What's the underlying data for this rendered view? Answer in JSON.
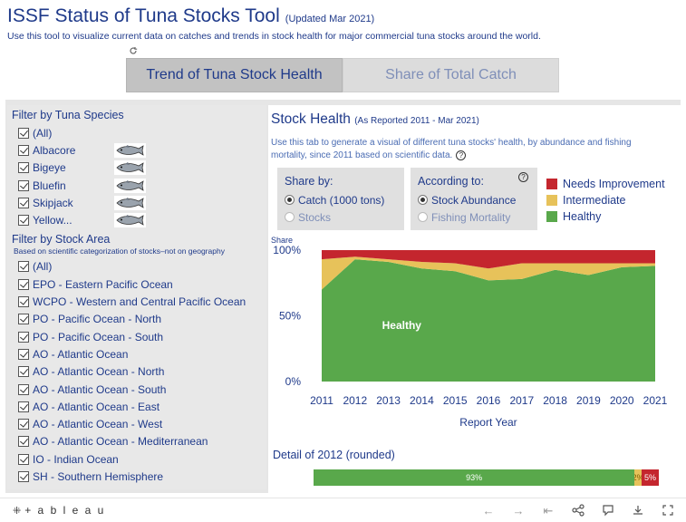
{
  "header": {
    "title": "ISSF Status of Tuna Stocks Tool",
    "updated": "(Updated Mar 2021)",
    "subtitle": "Use this tool to visualize current data on catches and trends in stock health for major commercial tuna stocks around the world."
  },
  "tabs": [
    {
      "label": "Trend of Tuna Stock Health",
      "active": true
    },
    {
      "label": "Share of Total Catch",
      "active": false
    }
  ],
  "filters": {
    "species": {
      "title": "Filter by Tuna Species",
      "items": [
        {
          "label": "(All)",
          "checked": true,
          "icon": ""
        },
        {
          "label": "Albacore",
          "checked": true,
          "icon": "albacore-fish-icon"
        },
        {
          "label": "Bigeye",
          "checked": true,
          "icon": "bigeye-fish-icon"
        },
        {
          "label": "Bluefin",
          "checked": true,
          "icon": "bluefin-fish-icon"
        },
        {
          "label": "Skipjack",
          "checked": true,
          "icon": "skipjack-fish-icon"
        },
        {
          "label": "Yellow...",
          "checked": true,
          "icon": "yellowfin-fish-icon"
        }
      ]
    },
    "area": {
      "title": "Filter by Stock Area",
      "note": "Based on scientific categorization of stocks–not on geography",
      "items": [
        {
          "label": "(All)",
          "checked": true
        },
        {
          "label": "EPO - Eastern Pacific Ocean",
          "checked": true
        },
        {
          "label": "WCPO - Western and Central Pacific Ocean",
          "checked": true
        },
        {
          "label": "PO - Pacific Ocean - North",
          "checked": true
        },
        {
          "label": "PO - Pacific Ocean - South",
          "checked": true
        },
        {
          "label": "AO - Atlantic Ocean",
          "checked": true
        },
        {
          "label": "AO - Atlantic Ocean - North",
          "checked": true
        },
        {
          "label": "AO - Atlantic Ocean - South",
          "checked": true
        },
        {
          "label": "AO - Atlantic Ocean - East",
          "checked": true
        },
        {
          "label": "AO - Atlantic Ocean - West",
          "checked": true
        },
        {
          "label": "AO - Atlantic Ocean - Mediterranean",
          "checked": true
        },
        {
          "label": "IO - Indian Ocean",
          "checked": true
        },
        {
          "label": "SH - Southern Hemisphere",
          "checked": true
        }
      ]
    }
  },
  "stock_health": {
    "title": "Stock Health",
    "title_note": "(As Reported 2011 - Mar 2021)",
    "description": "Use this tab to generate a visual of different tuna stocks' health, by abundance and fishing mortality, since 2011 based on scientific data.",
    "share_by": {
      "title": "Share by:",
      "options": [
        {
          "label": "Catch (1000 tons)",
          "selected": true
        },
        {
          "label": "Stocks",
          "selected": false
        }
      ]
    },
    "according_to": {
      "title": "According to:",
      "options": [
        {
          "label": "Stock Abundance",
          "selected": true
        },
        {
          "label": "Fishing Mortality",
          "selected": false
        }
      ]
    },
    "legend": [
      {
        "label": "Needs Improvement",
        "color": "#c4262e"
      },
      {
        "label": "Intermediate",
        "color": "#e7c25a"
      },
      {
        "label": "Healthy",
        "color": "#59a84b"
      }
    ]
  },
  "chart_data": {
    "type": "area",
    "ylabel": "Share",
    "xlabel": "Report Year",
    "ylim": [
      0,
      100
    ],
    "yticks": [
      "0%",
      "50%",
      "100%"
    ],
    "x": [
      2011,
      2012,
      2013,
      2014,
      2015,
      2016,
      2017,
      2018,
      2019,
      2020,
      2021
    ],
    "series": [
      {
        "name": "Healthy",
        "color": "#59a84b",
        "values": [
          70,
          93,
          91,
          86,
          84,
          77,
          78,
          85,
          81,
          87,
          88
        ]
      },
      {
        "name": "Intermediate",
        "color": "#e7c25a",
        "values": [
          23,
          2,
          2,
          5,
          6,
          9,
          12,
          5,
          9,
          3,
          2
        ]
      },
      {
        "name": "Needs Improvement",
        "color": "#c4262e",
        "values": [
          7,
          5,
          7,
          9,
          10,
          14,
          10,
          10,
          10,
          10,
          10
        ]
      }
    ],
    "annotation": "Healthy",
    "grid": false
  },
  "detail": {
    "title": "Detail of 2012 (rounded)",
    "segments": [
      {
        "label": "93%",
        "value": 93,
        "color": "#59a84b"
      },
      {
        "label": "2%",
        "value": 2,
        "color": "#e7c25a"
      },
      {
        "label": "5%",
        "value": 5,
        "color": "#c4262e"
      }
    ]
  },
  "footer": {
    "brand": "+ a b l e a u"
  }
}
